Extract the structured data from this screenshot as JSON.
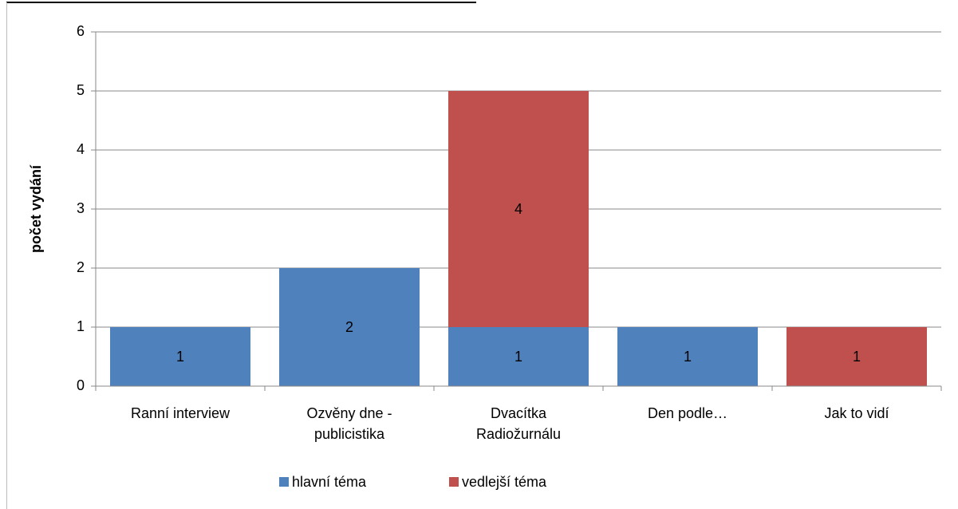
{
  "chart_data": {
    "type": "stacked-bar",
    "y_label": "počet vydání",
    "categories": [
      "Ranní interview",
      "Ozvěny dne - publicistika",
      "Dvacítka Radiožurnálu",
      "Den podle…",
      "Jak to vidí"
    ],
    "series": [
      {
        "name": "hlavní téma",
        "color": "#4f81bd",
        "values": [
          1,
          2,
          1,
          1,
          null
        ]
      },
      {
        "name": "vedlejší téma",
        "color": "#c0504d",
        "values": [
          null,
          null,
          4,
          null,
          1
        ]
      }
    ],
    "ylim": [
      0,
      6
    ],
    "yticks": [
      0,
      1,
      2,
      3,
      4,
      5,
      6
    ],
    "grid": true,
    "legend": "bottom"
  }
}
